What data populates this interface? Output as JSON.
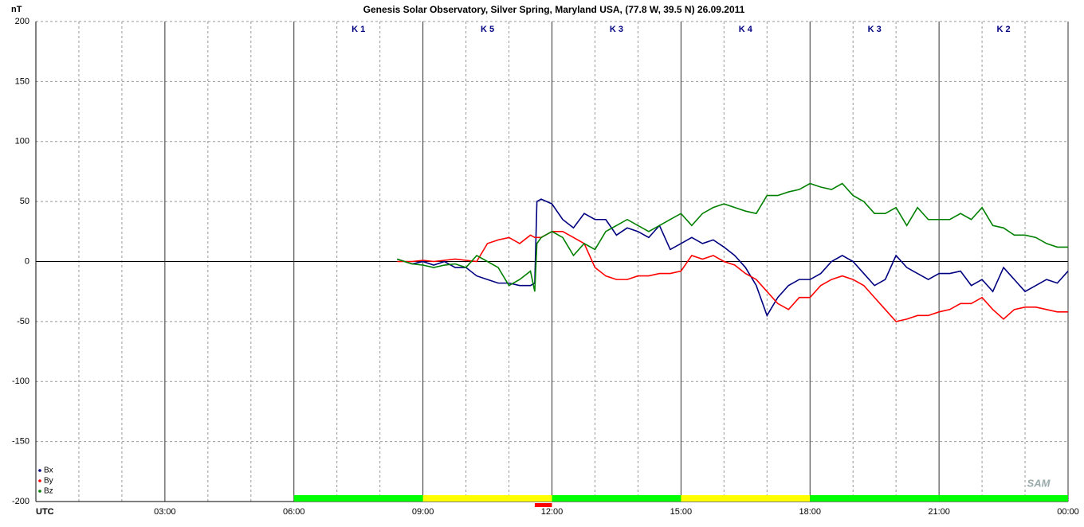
{
  "chart_data": {
    "type": "line",
    "title": "Genesis Solar Observatory, Silver Spring, Maryland USA, (77.8 W, 39.5 N)  26.09.2011",
    "y_label": "nT",
    "x_label": "UTC",
    "logo": "SAM",
    "xlim": [
      0,
      24
    ],
    "ylim": [
      -200,
      200
    ],
    "xticks": [
      {
        "value": 3,
        "label": "03:00"
      },
      {
        "value": 6,
        "label": "06:00"
      },
      {
        "value": 9,
        "label": "09:00"
      },
      {
        "value": 12,
        "label": "12:00"
      },
      {
        "value": 15,
        "label": "15:00"
      },
      {
        "value": 18,
        "label": "18:00"
      },
      {
        "value": 21,
        "label": "21:00"
      },
      {
        "value": 24,
        "label": "00:00"
      }
    ],
    "xminor": [
      1,
      2,
      4,
      5,
      7,
      8,
      10,
      11,
      13,
      14,
      16,
      17,
      19,
      20,
      22,
      23
    ],
    "yticks": [
      -200,
      -150,
      -100,
      -50,
      0,
      50,
      100,
      150,
      200
    ],
    "grid": true,
    "legend": "lower left",
    "k_bands": [
      {
        "start": 6,
        "end": 9,
        "label": "K 1",
        "color": "#00ff00"
      },
      {
        "start": 9,
        "end": 12,
        "label": "K 5",
        "color": "#ffff00"
      },
      {
        "start": 12,
        "end": 15,
        "label": "K 3",
        "color": "#00ff00"
      },
      {
        "start": 15,
        "end": 18,
        "label": "K 4",
        "color": "#ffff00"
      },
      {
        "start": 18,
        "end": 21,
        "label": "K 3",
        "color": "#00ff00"
      },
      {
        "start": 21,
        "end": 24,
        "label": "K 2",
        "color": "#00ff00"
      }
    ],
    "marker": {
      "start": 11.6,
      "end": 12,
      "color": "#ff0000"
    },
    "x": [
      8.4,
      8.75,
      9,
      9.25,
      9.5,
      9.75,
      10,
      10.25,
      10.5,
      10.75,
      11,
      11.25,
      11.5,
      11.6,
      11.65,
      11.75,
      12,
      12.25,
      12.5,
      12.75,
      13,
      13.25,
      13.5,
      13.75,
      14,
      14.25,
      14.5,
      14.75,
      15,
      15.25,
      15.5,
      15.75,
      16,
      16.25,
      16.5,
      16.75,
      17,
      17.25,
      17.5,
      17.75,
      18,
      18.25,
      18.5,
      18.75,
      19,
      19.25,
      19.5,
      19.75,
      20,
      20.25,
      20.5,
      20.75,
      21,
      21.25,
      21.5,
      21.75,
      22,
      22.25,
      22.5,
      22.75,
      23,
      23.25,
      23.5,
      23.75,
      24
    ],
    "series": [
      {
        "name": "Bx",
        "color": "#000080",
        "values": [
          2,
          -2,
          0,
          -3,
          0,
          -5,
          -5,
          -12,
          -15,
          -18,
          -18,
          -20,
          -20,
          -18,
          50,
          52,
          48,
          35,
          28,
          40,
          35,
          35,
          22,
          28,
          25,
          20,
          30,
          10,
          15,
          20,
          15,
          18,
          12,
          5,
          -5,
          -20,
          -45,
          -30,
          -20,
          -15,
          -15,
          -10,
          0,
          5,
          0,
          -10,
          -20,
          -15,
          5,
          -5,
          -10,
          -15,
          -10,
          -10,
          -8,
          -20,
          -15,
          -25,
          -5,
          -15,
          -25,
          -20,
          -15,
          -18,
          -8
        ]
      },
      {
        "name": "By",
        "color": "#ff0000",
        "values": [
          0,
          0,
          1,
          0,
          1,
          2,
          1,
          0,
          15,
          18,
          20,
          15,
          22,
          20,
          20,
          20,
          25,
          25,
          20,
          15,
          -5,
          -12,
          -15,
          -15,
          -12,
          -12,
          -10,
          -10,
          -8,
          5,
          2,
          5,
          0,
          -3,
          -10,
          -15,
          -25,
          -35,
          -40,
          -30,
          -30,
          -20,
          -15,
          -12,
          -15,
          -20,
          -30,
          -40,
          -50,
          -48,
          -45,
          -45,
          -42,
          -40,
          -35,
          -35,
          -30,
          -40,
          -48,
          -40,
          -38,
          -38,
          -40,
          -42,
          -42
        ]
      },
      {
        "name": "Bz",
        "color": "#008000",
        "values": [
          2,
          -2,
          -3,
          -5,
          -3,
          -2,
          -5,
          5,
          0,
          -5,
          -20,
          -15,
          -8,
          -25,
          15,
          20,
          25,
          20,
          5,
          15,
          10,
          25,
          30,
          35,
          30,
          25,
          30,
          35,
          40,
          30,
          40,
          45,
          48,
          45,
          42,
          40,
          55,
          55,
          58,
          60,
          65,
          62,
          60,
          65,
          55,
          50,
          40,
          40,
          45,
          30,
          45,
          35,
          35,
          35,
          40,
          35,
          45,
          30,
          28,
          22,
          22,
          20,
          15,
          12,
          12
        ]
      }
    ]
  }
}
